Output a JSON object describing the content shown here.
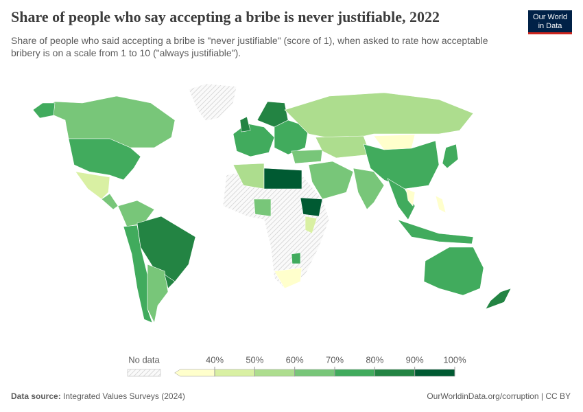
{
  "header": {
    "title": "Share of people who say accepting a bribe is never justifiable, 2022",
    "subtitle": "Share of people who said accepting a bribe is \"never justifiable\" (score of 1), when asked to rate how acceptable bribery is on a scale from 1 to 10 (\"always justifiable\").",
    "logo": [
      "Our World",
      "in Data"
    ]
  },
  "legend": {
    "no_data": "No data",
    "ticks": [
      {
        "value": 40,
        "label": "40%"
      },
      {
        "value": 50,
        "label": "50%"
      },
      {
        "value": 60,
        "label": "60%"
      },
      {
        "value": 70,
        "label": "70%"
      },
      {
        "value": 80,
        "label": "80%"
      },
      {
        "value": 90,
        "label": "90%"
      },
      {
        "value": 100,
        "label": "100%"
      }
    ],
    "colors": [
      "#ffffcc",
      "#d9f0a3",
      "#addd8e",
      "#78c679",
      "#41ab5d",
      "#238443",
      "#005a32"
    ]
  },
  "footer": {
    "source_label": "Data source:",
    "source": "Integrated Values Surveys (2024)",
    "url": "OurWorldinData.org/corruption | CC BY"
  }
}
